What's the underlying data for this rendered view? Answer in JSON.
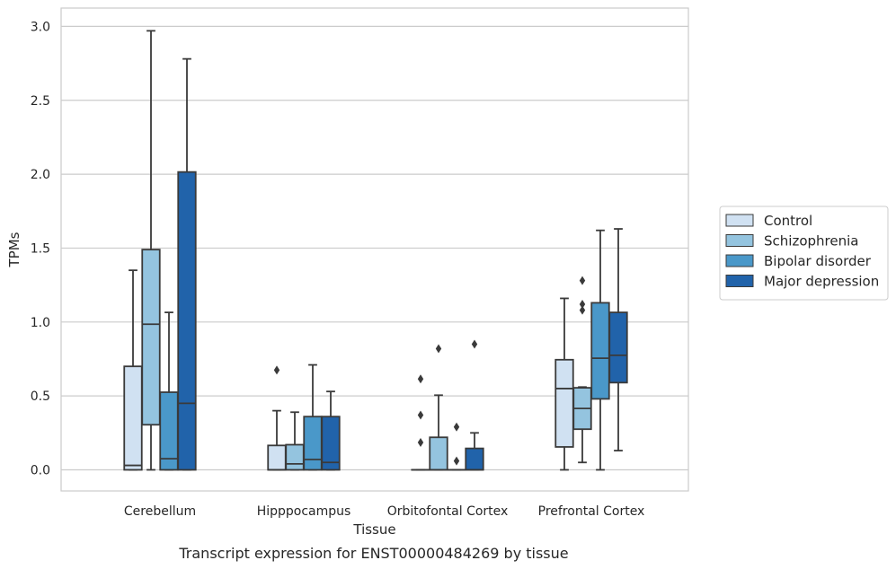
{
  "caption": "Transcript expression for ENST00000484269 by tissue",
  "chart_data": {
    "type": "box",
    "title": "",
    "xlabel": "Tissue",
    "ylabel": "TPMs",
    "ylim": [
      -0.15,
      3.12
    ],
    "yticks": [
      0.0,
      0.5,
      1.0,
      1.5,
      2.0,
      2.5,
      3.0
    ],
    "ytick_labels": [
      "0.0",
      "0.5",
      "1.0",
      "1.5",
      "2.0",
      "2.5",
      "3.0"
    ],
    "grid": "horizontal",
    "legend_position": "right",
    "categories": [
      "Cerebellum",
      "Hipppocampus",
      "Orbitofontal Cortex",
      "Prefrontal Cortex"
    ],
    "series": [
      {
        "name": "Control",
        "color": "#d0e1f2",
        "boxes": [
          {
            "whislo": 0.0,
            "q1": 0.0,
            "med": 0.03,
            "q3": 0.7,
            "whishi": 1.35,
            "fliers": []
          },
          {
            "whislo": 0.0,
            "q1": 0.0,
            "med": 0.0,
            "q3": 0.165,
            "whishi": 0.4,
            "fliers": [
              0.675
            ]
          },
          {
            "whislo": 0.0,
            "q1": 0.0,
            "med": 0.0,
            "q3": 0.0,
            "whishi": 0.0,
            "fliers": [
              0.185,
              0.37,
              0.615
            ]
          },
          {
            "whislo": 0.0,
            "q1": 0.155,
            "med": 0.55,
            "q3": 0.745,
            "whishi": 1.16,
            "fliers": []
          }
        ]
      },
      {
        "name": "Schizophrenia",
        "color": "#94c4df",
        "boxes": [
          {
            "whislo": 0.0,
            "q1": 0.305,
            "med": 0.985,
            "q3": 1.49,
            "whishi": 2.97,
            "fliers": []
          },
          {
            "whislo": 0.0,
            "q1": 0.0,
            "med": 0.04,
            "q3": 0.17,
            "whishi": 0.39,
            "fliers": []
          },
          {
            "whislo": 0.0,
            "q1": 0.0,
            "med": 0.0,
            "q3": 0.22,
            "whishi": 0.505,
            "fliers": [
              0.82
            ]
          },
          {
            "whislo": 0.05,
            "q1": 0.275,
            "med": 0.415,
            "q3": 0.555,
            "whishi": 0.56,
            "fliers": [
              1.08,
              1.12,
              1.28
            ]
          }
        ]
      },
      {
        "name": "Bipolar disorder",
        "color": "#4a98c9",
        "boxes": [
          {
            "whislo": 0.0,
            "q1": 0.0,
            "med": 0.075,
            "q3": 0.525,
            "whishi": 1.065,
            "fliers": []
          },
          {
            "whislo": 0.0,
            "q1": 0.0,
            "med": 0.07,
            "q3": 0.36,
            "whishi": 0.71,
            "fliers": []
          },
          {
            "whislo": 0.0,
            "q1": 0.0,
            "med": 0.0,
            "q3": 0.0,
            "whishi": 0.0,
            "fliers": [
              0.06,
              0.29
            ]
          },
          {
            "whislo": 0.0,
            "q1": 0.48,
            "med": 0.755,
            "q3": 1.13,
            "whishi": 1.62,
            "fliers": []
          }
        ]
      },
      {
        "name": "Major depression",
        "color": "#2163aa",
        "boxes": [
          {
            "whislo": 0.0,
            "q1": 0.0,
            "med": 0.45,
            "q3": 2.015,
            "whishi": 2.78,
            "fliers": []
          },
          {
            "whislo": 0.0,
            "q1": 0.0,
            "med": 0.05,
            "q3": 0.36,
            "whishi": 0.53,
            "fliers": []
          },
          {
            "whislo": 0.0,
            "q1": 0.0,
            "med": 0.0,
            "q3": 0.145,
            "whishi": 0.25,
            "fliers": [
              0.85
            ]
          },
          {
            "whislo": 0.13,
            "q1": 0.59,
            "med": 0.775,
            "q3": 1.065,
            "whishi": 1.63,
            "fliers": []
          }
        ]
      }
    ]
  }
}
